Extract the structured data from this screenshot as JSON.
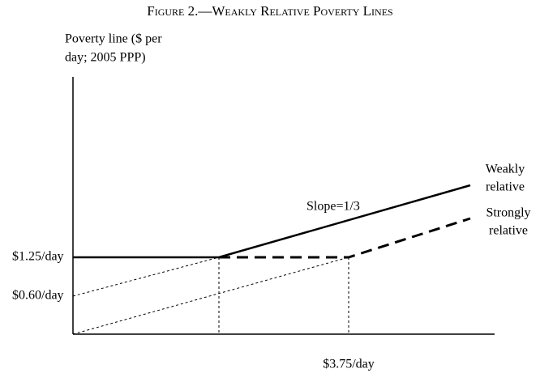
{
  "title": "Figure 2.—Weakly Relative Poverty Lines",
  "y_axis_label": [
    "Poverty line ($ per",
    "day; 2005 PPP)"
  ],
  "labels": {
    "absolute_line": "$1.25/day",
    "intercept": "$0.60/day",
    "kink": "$3.75/day",
    "slope": "Slope=1/3",
    "weakly": [
      "Weakly",
      "relative"
    ],
    "strongly": [
      "Strongly",
      "relative"
    ]
  }
}
